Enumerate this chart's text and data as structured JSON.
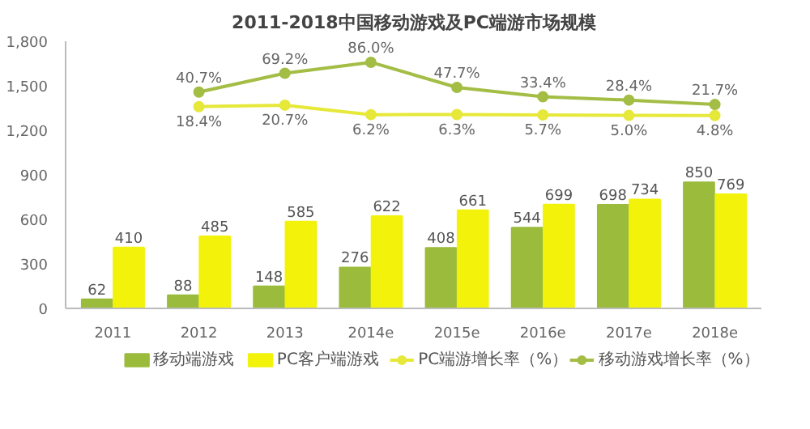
{
  "chart_data": {
    "type": "bar",
    "title": "2011-2018中国移动游戏及PC端游市场规模",
    "categories": [
      "2011",
      "2012",
      "2013",
      "2014e",
      "2015e",
      "2016e",
      "2017e",
      "2018e"
    ],
    "series": [
      {
        "name": "移动端游戏",
        "color": "#9bbb3c",
        "values": [
          62,
          88,
          148,
          276,
          408,
          544,
          698,
          850
        ]
      },
      {
        "name": "PC客户端游戏",
        "color": "#f2f20a",
        "values": [
          410,
          485,
          585,
          622,
          661,
          699,
          734,
          769
        ]
      },
      {
        "name": "PC端游增长率（%）",
        "type": "line",
        "axis": "y2",
        "color": "#e6e83a",
        "values": [
          null,
          18.4,
          20.7,
          6.2,
          6.3,
          5.7,
          5.0,
          4.8
        ],
        "value_labels": [
          null,
          "18.4%",
          "20.7%",
          "6.2%",
          "6.3%",
          "5.7%",
          "5.0%",
          "4.8%"
        ]
      },
      {
        "name": "移动游戏增长率（%）",
        "type": "line",
        "axis": "y2",
        "color": "#a3bd45",
        "values": [
          null,
          40.7,
          69.2,
          86.0,
          47.7,
          33.4,
          28.4,
          21.7
        ],
        "value_labels": [
          null,
          "40.7%",
          "69.2%",
          "86.0%",
          "47.7%",
          "33.4%",
          "28.4%",
          "21.7%"
        ]
      }
    ],
    "ylim": [
      0,
      1800
    ],
    "yticks": [
      0,
      300,
      600,
      900,
      {
        "value": 1200,
        "label": "1,200"
      },
      {
        "value": 1500,
        "label": "1,500"
      },
      {
        "value": 1800,
        "label": "1,800"
      }
    ],
    "y2lim": [
      -289,
      118
    ],
    "data_labels": true,
    "legend": "bottom",
    "grid": false,
    "marker": "circle",
    "line_style": "solid"
  }
}
